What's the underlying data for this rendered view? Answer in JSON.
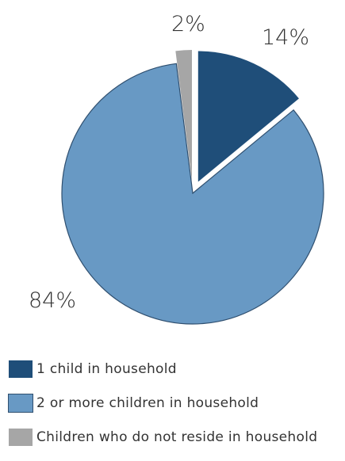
{
  "chart_data": {
    "type": "pie",
    "slices": [
      {
        "name": "1 child in household",
        "value": 14,
        "label": "14%",
        "color": "#1f4e79",
        "exploded": true
      },
      {
        "name": "2 or more children in household",
        "value": 84,
        "label": "84%",
        "color": "#6899c4",
        "exploded": false
      },
      {
        "name": "Children who do not reside in household",
        "value": 2,
        "label": "2%",
        "color": "#a6a6a6",
        "exploded": true
      }
    ],
    "legend_position": "bottom-left"
  }
}
